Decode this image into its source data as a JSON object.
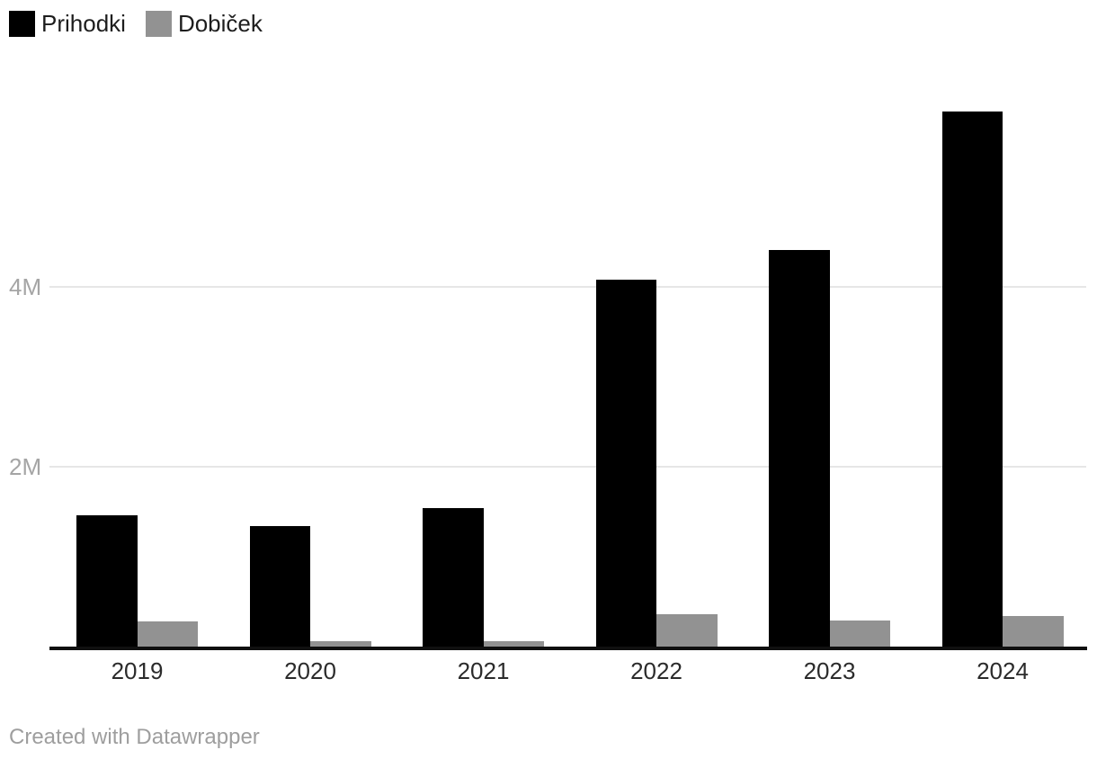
{
  "legend": {
    "items": [
      {
        "label": "Prihodki",
        "color": "#000000"
      },
      {
        "label": "Dobiček",
        "color": "#929292"
      }
    ]
  },
  "chart_data": {
    "type": "bar",
    "title": "",
    "categories": [
      "2019",
      "2020",
      "2021",
      "2022",
      "2023",
      "2024"
    ],
    "series": [
      {
        "name": "Prihodki",
        "color": "#000000",
        "values": [
          1460000,
          1350000,
          1540000,
          4080000,
          4400000,
          5940000
        ]
      },
      {
        "name": "Dobiček",
        "color": "#929292",
        "values": [
          290000,
          70000,
          70000,
          370000,
          300000,
          350000
        ]
      }
    ],
    "y_axis": {
      "ticks": [
        {
          "label": "2M",
          "value": 2000000
        },
        {
          "label": "4M",
          "value": 4000000
        }
      ],
      "range": [
        0,
        6200000
      ],
      "grid": true
    },
    "x_axis": {
      "ticks": [
        "2019",
        "2020",
        "2021",
        "2022",
        "2023",
        "2024"
      ]
    },
    "legend_position": "top-left"
  },
  "footer": {
    "attribution": "Created with Datawrapper"
  },
  "colors": {
    "background": "#ffffff",
    "gridline": "#e6e6e6",
    "axis_line": "#101010",
    "x_tick_text": "#2b2b2b",
    "y_tick_text": "#a5a5a5",
    "footer_text": "#9e9e9e"
  }
}
